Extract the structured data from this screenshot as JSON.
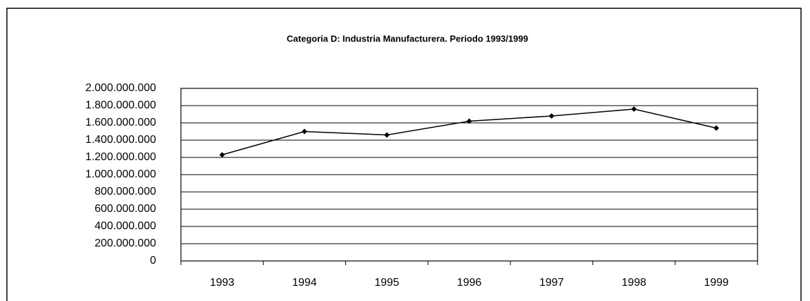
{
  "chart_data": {
    "type": "line",
    "title": "Categoria D: Industria Manufacturera. Periodo 1993/1999",
    "categories": [
      "1993",
      "1994",
      "1995",
      "1996",
      "1997",
      "1998",
      "1999"
    ],
    "series": [
      {
        "name": "Categoria D",
        "color": "#000000",
        "values": [
          1230000000,
          1500000000,
          1460000000,
          1620000000,
          1680000000,
          1760000000,
          1540000000
        ]
      }
    ],
    "ylim": [
      0,
      2000000000
    ],
    "yticks": [
      0,
      {
        "value": 200000000,
        "label": "200.000.000"
      },
      {
        "value": 400000000,
        "label": "400.000.000"
      },
      {
        "value": 600000000,
        "label": "600.000.000"
      },
      {
        "value": 800000000,
        "label": "800.000.000"
      },
      {
        "value": 1000000000,
        "label": "1.000.000.000"
      },
      {
        "value": 1200000000,
        "label": "1.200.000.000"
      },
      {
        "value": 1400000000,
        "label": "1.400.000.000"
      },
      {
        "value": 1600000000,
        "label": "1.600.000.000"
      },
      {
        "value": 1800000000,
        "label": "1.800.000.000"
      },
      {
        "value": 2000000000,
        "label": "2.000.000.000"
      }
    ],
    "grid": true
  }
}
